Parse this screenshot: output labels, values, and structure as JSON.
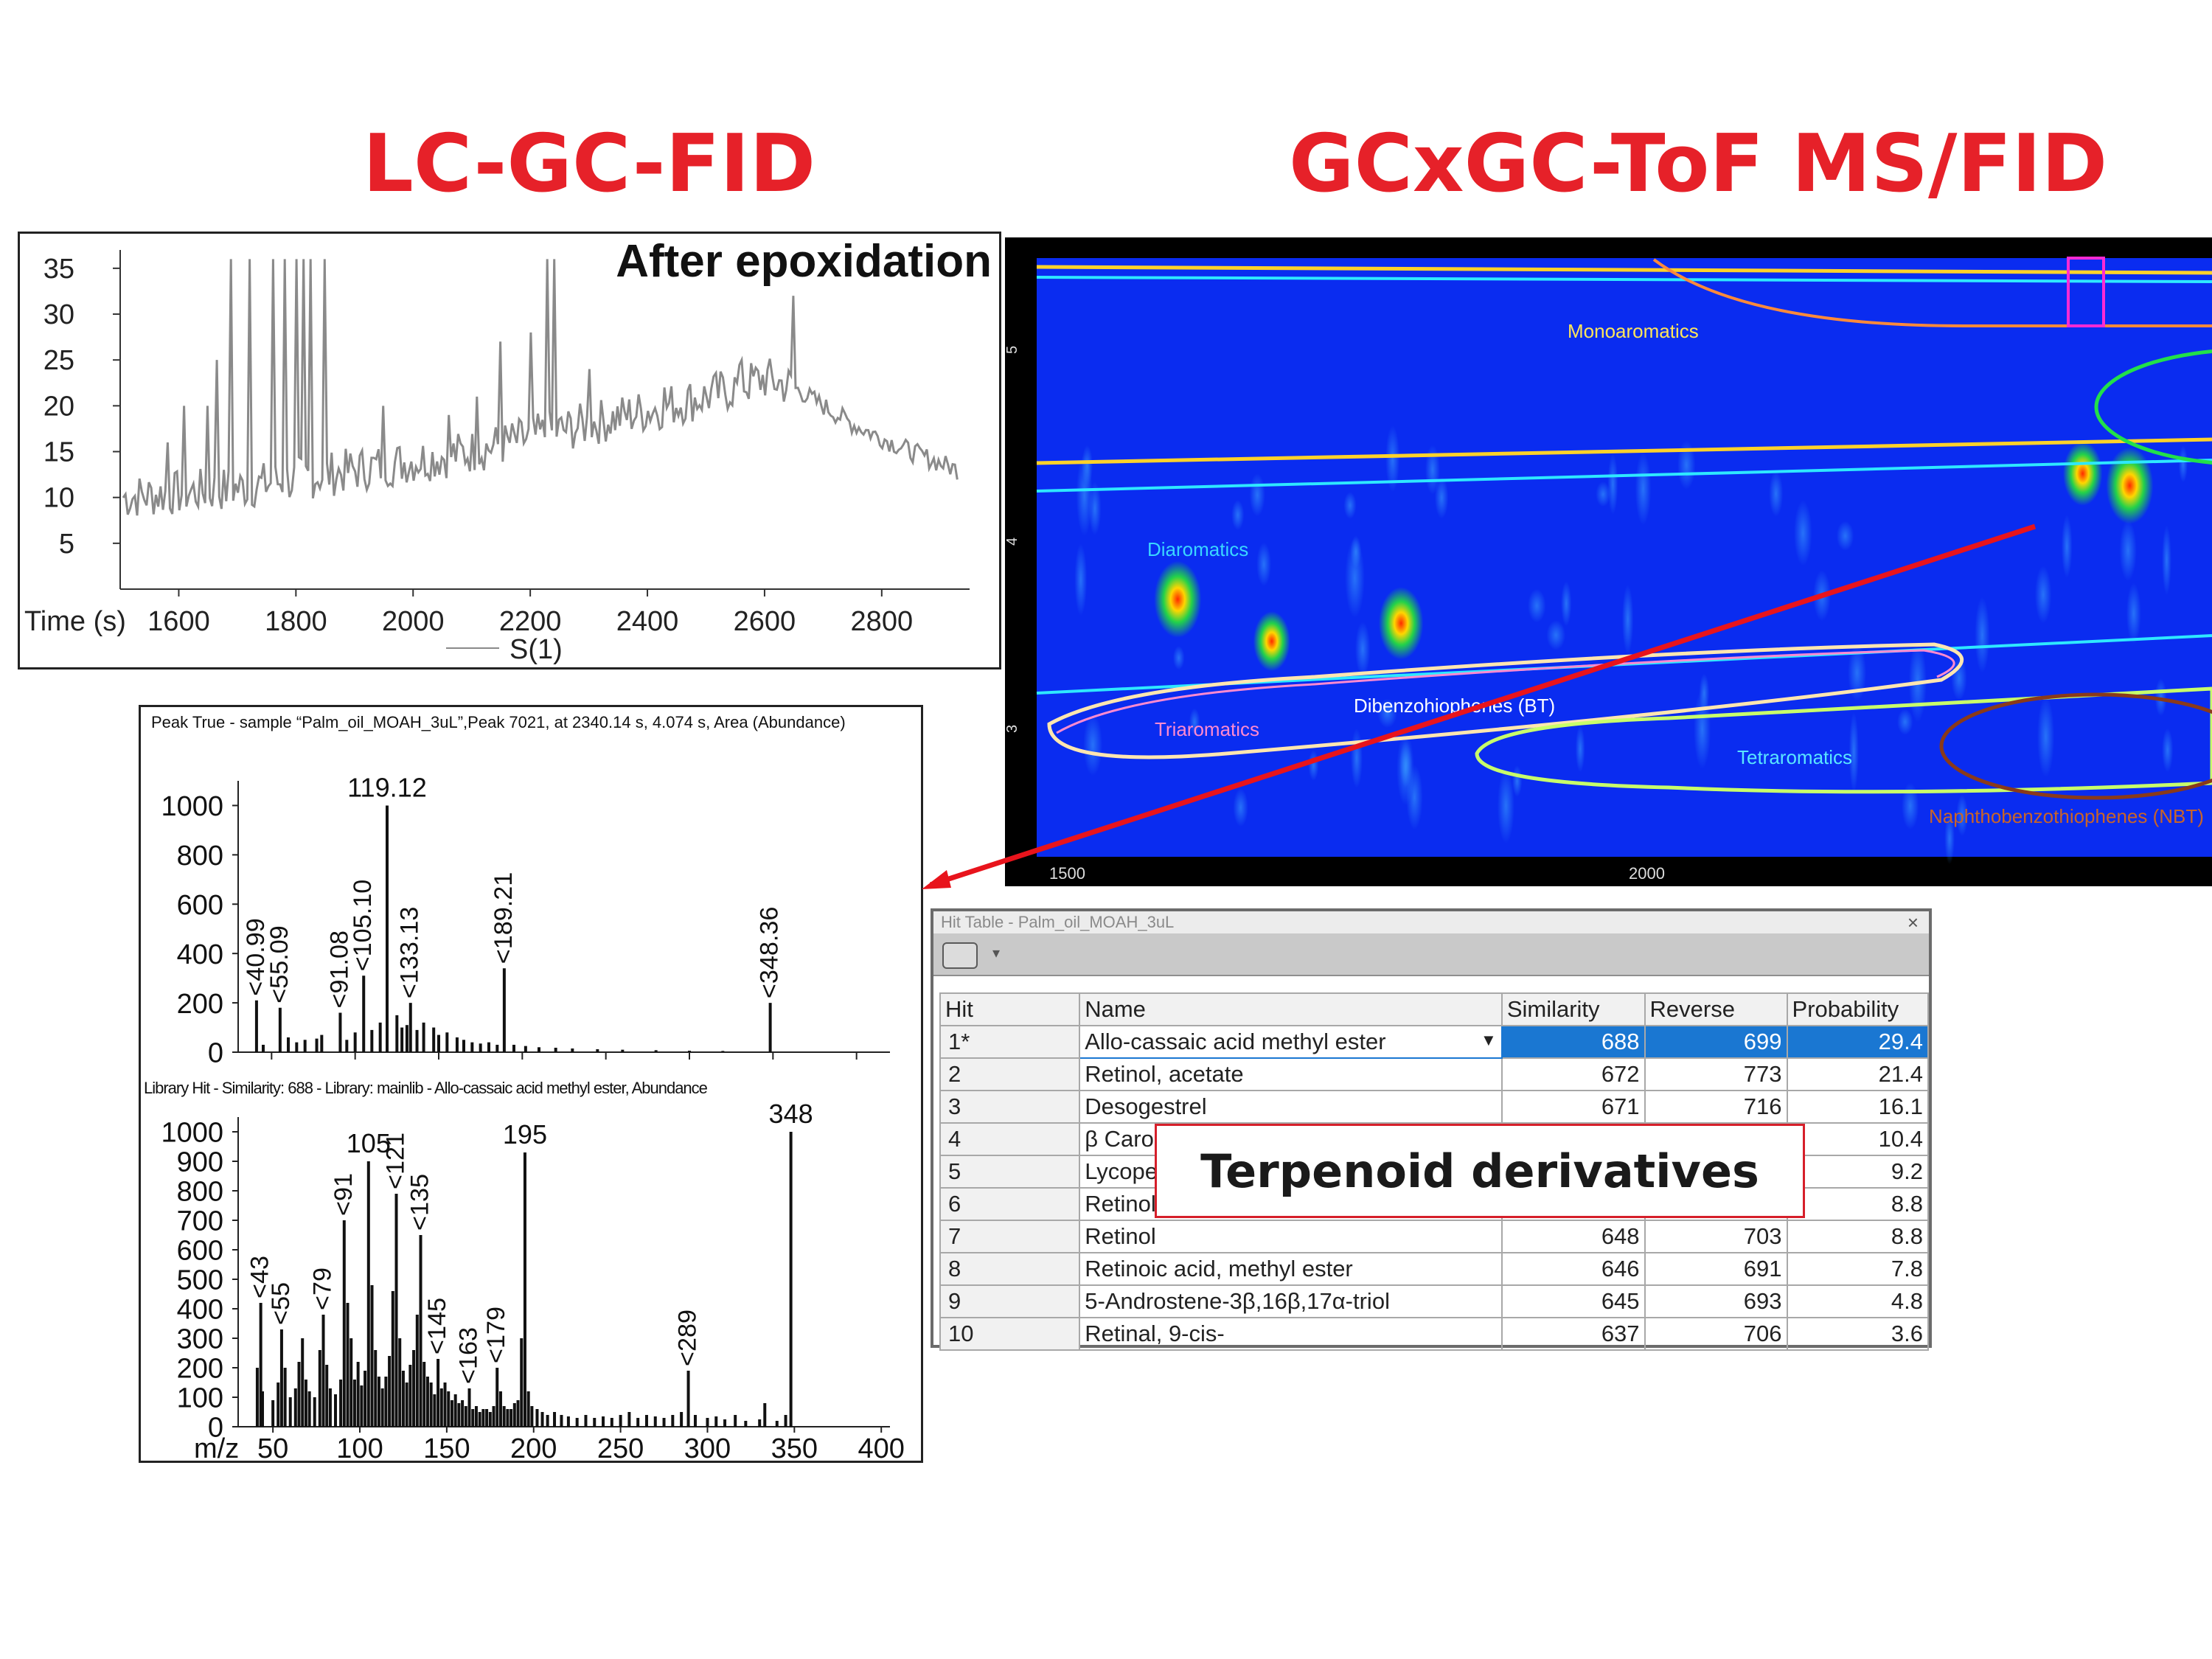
{
  "titles": {
    "left": "LC-GC-FID",
    "right": "GCxGC-ToF MS/FID"
  },
  "colors": {
    "title": "#e62129",
    "trace": "#8a8a8a",
    "gc_bg": "#0a2cf0",
    "selection": "#1a77d2",
    "callout_border": "#d61f2a",
    "arrow": "#e8141c"
  },
  "chart_data": [
    {
      "id": "lc_gc_fid",
      "type": "line",
      "title": "After epoxidation",
      "xlabel": "Time (s)",
      "legend": "S(1)",
      "xlim": [
        1500,
        2950
      ],
      "ylim": [
        0,
        37
      ],
      "xticks": [
        1600,
        1800,
        2000,
        2200,
        2400,
        2600,
        2800
      ],
      "yticks": [
        5,
        10,
        15,
        20,
        25,
        30,
        35
      ],
      "baseline": [
        [
          1500,
          10
        ],
        [
          1700,
          11
        ],
        [
          1900,
          13
        ],
        [
          2100,
          15
        ],
        [
          2300,
          18
        ],
        [
          2500,
          21
        ],
        [
          2600,
          23
        ],
        [
          2650,
          22
        ],
        [
          2750,
          18
        ],
        [
          2850,
          15
        ],
        [
          2930,
          13
        ]
      ],
      "spikes": [
        [
          1580,
          16
        ],
        [
          1610,
          20
        ],
        [
          1650,
          20
        ],
        [
          1665,
          25
        ],
        [
          1690,
          36
        ],
        [
          1720,
          36
        ],
        [
          1760,
          36
        ],
        [
          1780,
          36
        ],
        [
          1800,
          36
        ],
        [
          1812,
          36
        ],
        [
          1825,
          36
        ],
        [
          1850,
          36
        ],
        [
          1950,
          20
        ],
        [
          2060,
          19
        ],
        [
          2110,
          21
        ],
        [
          2150,
          27
        ],
        [
          2200,
          28
        ],
        [
          2230,
          36
        ],
        [
          2240,
          36
        ],
        [
          2300,
          24
        ],
        [
          2430,
          22
        ],
        [
          2560,
          25
        ],
        [
          2650,
          32
        ]
      ]
    },
    {
      "id": "peak_true",
      "type": "bar",
      "title": "Peak True - sample “Palm_oil_MOAH_3uL”,Peak 7021, at 2340.14 s, 4.074 s, Area (Abundance)",
      "xlim": [
        30,
        420
      ],
      "ylim": [
        0,
        1100
      ],
      "yticks": [
        0,
        200,
        400,
        600,
        800,
        1000
      ],
      "peaks": [
        [
          40.99,
          210
        ],
        [
          55.09,
          180
        ],
        [
          91.08,
          160
        ],
        [
          105.1,
          310
        ],
        [
          119.12,
          1000
        ],
        [
          133.13,
          200
        ],
        [
          189.21,
          340
        ],
        [
          348.36,
          200
        ]
      ],
      "labels": [
        "40.99",
        "55.09",
        "91.08",
        "105.10",
        "119.12",
        "133.13",
        "189.21",
        "348.36"
      ],
      "minor": [
        [
          45,
          30
        ],
        [
          60,
          60
        ],
        [
          65,
          40
        ],
        [
          70,
          50
        ],
        [
          77,
          55
        ],
        [
          80,
          70
        ],
        [
          95,
          50
        ],
        [
          100,
          80
        ],
        [
          110,
          90
        ],
        [
          115,
          120
        ],
        [
          125,
          150
        ],
        [
          128,
          100
        ],
        [
          131,
          110
        ],
        [
          137,
          90
        ],
        [
          141,
          120
        ],
        [
          147,
          100
        ],
        [
          150,
          70
        ],
        [
          155,
          80
        ],
        [
          161,
          60
        ],
        [
          165,
          50
        ],
        [
          170,
          40
        ],
        [
          175,
          35
        ],
        [
          180,
          40
        ],
        [
          185,
          30
        ],
        [
          195,
          30
        ],
        [
          202,
          25
        ],
        [
          210,
          20
        ],
        [
          220,
          18
        ],
        [
          230,
          15
        ],
        [
          245,
          12
        ],
        [
          260,
          10
        ],
        [
          280,
          8
        ],
        [
          300,
          6
        ],
        [
          320,
          5
        ]
      ]
    },
    {
      "id": "library_hit",
      "type": "bar",
      "title": "Library Hit - Similarity: 688 - Library: mainlib - Allo-cassaic acid methyl ester, Abundance",
      "xlabel": "m/z",
      "xlim": [
        30,
        405
      ],
      "ylim": [
        0,
        1050
      ],
      "xticks": [
        50,
        100,
        150,
        200,
        250,
        300,
        350,
        400
      ],
      "yticks": [
        0,
        100,
        200,
        300,
        400,
        500,
        600,
        700,
        800,
        900,
        1000
      ],
      "peaks": [
        [
          43,
          420
        ],
        [
          55,
          330
        ],
        [
          79,
          380
        ],
        [
          91,
          700
        ],
        [
          105,
          900
        ],
        [
          121,
          790
        ],
        [
          135,
          650
        ],
        [
          145,
          230
        ],
        [
          163,
          130
        ],
        [
          179,
          200
        ],
        [
          195,
          930
        ],
        [
          289,
          190
        ],
        [
          348,
          1000
        ]
      ],
      "labels": [
        "43",
        "55",
        "79",
        "91",
        "105",
        "121",
        "135",
        "145",
        "163",
        "179",
        "195",
        "289",
        "348"
      ],
      "minor": [
        [
          41,
          200
        ],
        [
          44,
          120
        ],
        [
          50,
          90
        ],
        [
          53,
          150
        ],
        [
          57,
          200
        ],
        [
          60,
          100
        ],
        [
          63,
          130
        ],
        [
          65,
          220
        ],
        [
          67,
          300
        ],
        [
          69,
          160
        ],
        [
          71,
          120
        ],
        [
          74,
          100
        ],
        [
          77,
          260
        ],
        [
          81,
          210
        ],
        [
          83,
          130
        ],
        [
          86,
          110
        ],
        [
          89,
          160
        ],
        [
          93,
          420
        ],
        [
          95,
          300
        ],
        [
          97,
          160
        ],
        [
          99,
          220
        ],
        [
          101,
          140
        ],
        [
          103,
          190
        ],
        [
          107,
          480
        ],
        [
          109,
          260
        ],
        [
          111,
          170
        ],
        [
          113,
          130
        ],
        [
          115,
          170
        ],
        [
          117,
          240
        ],
        [
          119,
          460
        ],
        [
          123,
          300
        ],
        [
          125,
          190
        ],
        [
          127,
          150
        ],
        [
          129,
          210
        ],
        [
          131,
          260
        ],
        [
          133,
          380
        ],
        [
          137,
          220
        ],
        [
          139,
          170
        ],
        [
          141,
          150
        ],
        [
          143,
          110
        ],
        [
          147,
          130
        ],
        [
          149,
          150
        ],
        [
          151,
          120
        ],
        [
          153,
          90
        ],
        [
          155,
          110
        ],
        [
          157,
          80
        ],
        [
          159,
          90
        ],
        [
          161,
          70
        ],
        [
          165,
          60
        ],
        [
          167,
          70
        ],
        [
          169,
          50
        ],
        [
          171,
          60
        ],
        [
          173,
          60
        ],
        [
          175,
          50
        ],
        [
          177,
          70
        ],
        [
          181,
          120
        ],
        [
          183,
          70
        ],
        [
          185,
          60
        ],
        [
          187,
          60
        ],
        [
          189,
          80
        ],
        [
          191,
          90
        ],
        [
          193,
          300
        ],
        [
          197,
          120
        ],
        [
          199,
          70
        ],
        [
          202,
          60
        ],
        [
          205,
          50
        ],
        [
          208,
          40
        ],
        [
          212,
          50
        ],
        [
          216,
          40
        ],
        [
          220,
          35
        ],
        [
          225,
          30
        ],
        [
          230,
          40
        ],
        [
          235,
          30
        ],
        [
          240,
          35
        ],
        [
          245,
          30
        ],
        [
          250,
          40
        ],
        [
          255,
          50
        ],
        [
          260,
          30
        ],
        [
          265,
          40
        ],
        [
          270,
          35
        ],
        [
          275,
          30
        ],
        [
          280,
          40
        ],
        [
          285,
          50
        ],
        [
          293,
          40
        ],
        [
          300,
          30
        ],
        [
          305,
          35
        ],
        [
          310,
          25
        ],
        [
          316,
          40
        ],
        [
          322,
          20
        ],
        [
          330,
          25
        ],
        [
          333,
          80
        ],
        [
          340,
          20
        ],
        [
          345,
          40
        ]
      ]
    },
    {
      "id": "gcxgc",
      "type": "heatmap",
      "xticks": [
        "1500",
        "2000"
      ],
      "yticks": [
        "5",
        "4",
        "3"
      ],
      "regions": [
        "Monoaromatics",
        "Diaromatics",
        "Dibenzohiophenes (BT)",
        "Triaromatics",
        "Tetraromatics",
        "Naphthobenzothiophenes (NBT)"
      ],
      "spots": [
        [
          0.12,
          0.57,
          1.0
        ],
        [
          0.2,
          0.64,
          0.6
        ],
        [
          0.31,
          0.61,
          0.9
        ],
        [
          0.89,
          0.36,
          0.7
        ],
        [
          0.93,
          0.38,
          1.0
        ]
      ]
    }
  ],
  "hit_table": {
    "title": "Hit Table - Palm_oil_MOAH_3uL",
    "close": "×",
    "toolbar_arrow": "▾",
    "columns": [
      "Hit",
      "Name",
      "Similarity",
      "Reverse",
      "Probability"
    ],
    "rows": [
      {
        "hit": "1*",
        "name": "Allo-cassaic acid methyl ester",
        "similarity": "688",
        "reverse": "699",
        "probability": "29.4"
      },
      {
        "hit": "2",
        "name": "Retinol, acetate",
        "similarity": "672",
        "reverse": "773",
        "probability": "21.4"
      },
      {
        "hit": "3",
        "name": "Desogestrel",
        "similarity": "671",
        "reverse": "716",
        "probability": "16.1"
      },
      {
        "hit": "4",
        "name": "β Caro",
        "similarity": "",
        "reverse": "",
        "probability": "10.4"
      },
      {
        "hit": "5",
        "name": "Lycope",
        "similarity": "",
        "reverse": "",
        "probability": "9.2"
      },
      {
        "hit": "6",
        "name": "Retinol",
        "similarity": "",
        "reverse": "",
        "probability": "8.8"
      },
      {
        "hit": "7",
        "name": "Retinol",
        "similarity": "648",
        "reverse": "703",
        "probability": "8.8"
      },
      {
        "hit": "8",
        "name": "Retinoic acid, methyl ester",
        "similarity": "646",
        "reverse": "691",
        "probability": "7.8"
      },
      {
        "hit": "9",
        "name": "5-Androstene-3β,16β,17α-triol",
        "similarity": "645",
        "reverse": "693",
        "probability": "4.8"
      },
      {
        "hit": "10",
        "name": "Retinal, 9-cis-",
        "similarity": "637",
        "reverse": "706",
        "probability": "3.6"
      }
    ],
    "dropdown_icon": "▼"
  },
  "callout": "Terpenoid derivatives"
}
